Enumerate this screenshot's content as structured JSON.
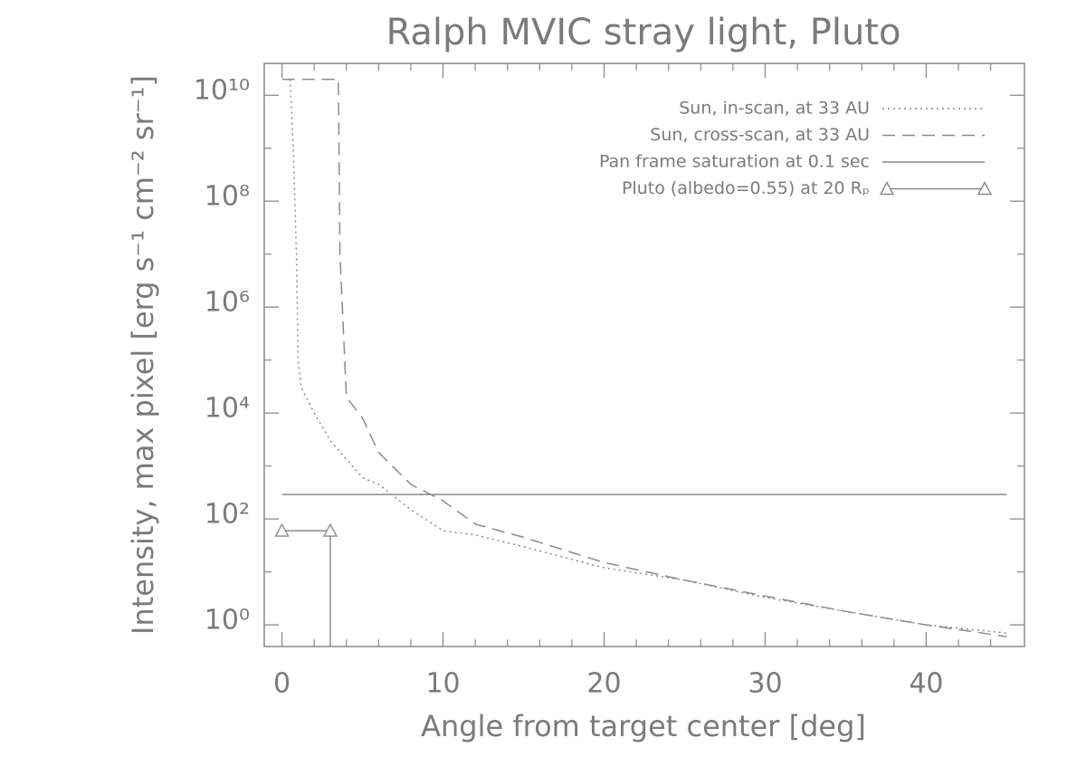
{
  "chart_data": {
    "type": "line",
    "title": "Ralph MVIC stray light, Pluto",
    "xlabel": "Angle from target center [deg]",
    "ylabel": "Intensity, max pixel [erg s⁻¹ cm⁻² sr⁻¹]",
    "log_y": true,
    "xlim": [
      -1.1,
      46.1
    ],
    "ylim": [
      0.39,
      40000000000.0
    ],
    "xticks": [
      0,
      10,
      20,
      30,
      40
    ],
    "xminorticks": [
      2,
      4,
      6,
      8,
      12,
      14,
      16,
      18,
      22,
      24,
      26,
      28,
      32,
      34,
      36,
      38,
      42,
      44
    ],
    "yticks": [
      {
        "value": 1,
        "label": "10⁰"
      },
      {
        "value": 100,
        "label": "10²"
      },
      {
        "value": 10000,
        "label": "10⁴"
      },
      {
        "value": 1000000,
        "label": "10⁶"
      },
      {
        "value": 100000000,
        "label": "10⁸"
      },
      {
        "value": 10000000000,
        "label": "10¹⁰"
      }
    ],
    "yminorticks": [
      10,
      1000,
      100000,
      10000000,
      1000000000
    ],
    "legend": "top-right",
    "series": [
      {
        "name": "Sun, in-scan, at 33 AU",
        "color": "#8a8a8a",
        "style": "dotted",
        "x": [
          0.5,
          0.7,
          0.9,
          1.0,
          1.2,
          2,
          3,
          5,
          6,
          8,
          10,
          12,
          15,
          20,
          25,
          30,
          35,
          40,
          45
        ],
        "values": [
          20000000000,
          1000000000,
          10000000,
          100000,
          30000,
          10000,
          3000,
          600,
          450,
          150,
          60,
          50,
          30,
          12,
          7,
          3.3,
          1.8,
          1,
          0.7
        ]
      },
      {
        "name": "Sun, cross-scan, at 33 AU",
        "color": "#8a8a8a",
        "style": "dashed",
        "x": [
          0,
          3.5,
          3.6,
          4,
          5,
          6,
          8,
          10,
          12,
          15,
          20,
          25,
          30,
          35,
          40,
          45
        ],
        "values": [
          20000000000,
          20000000000,
          10000000,
          20000,
          8000,
          1800,
          450,
          220,
          80,
          45,
          15,
          7,
          3.5,
          1.8,
          1,
          0.6
        ]
      },
      {
        "name": "Pan frame saturation at 0.1 sec",
        "color": "#8a8a8a",
        "style": "solid",
        "x": [
          0,
          45
        ],
        "values": [
          290,
          290
        ]
      },
      {
        "name": "Pluto (albedo=0.55) at 20 Rₚ",
        "color": "#8a8a8a",
        "style": "solid",
        "marker": "triangle",
        "x": [
          0,
          3
        ],
        "values": [
          60,
          60
        ]
      }
    ]
  }
}
